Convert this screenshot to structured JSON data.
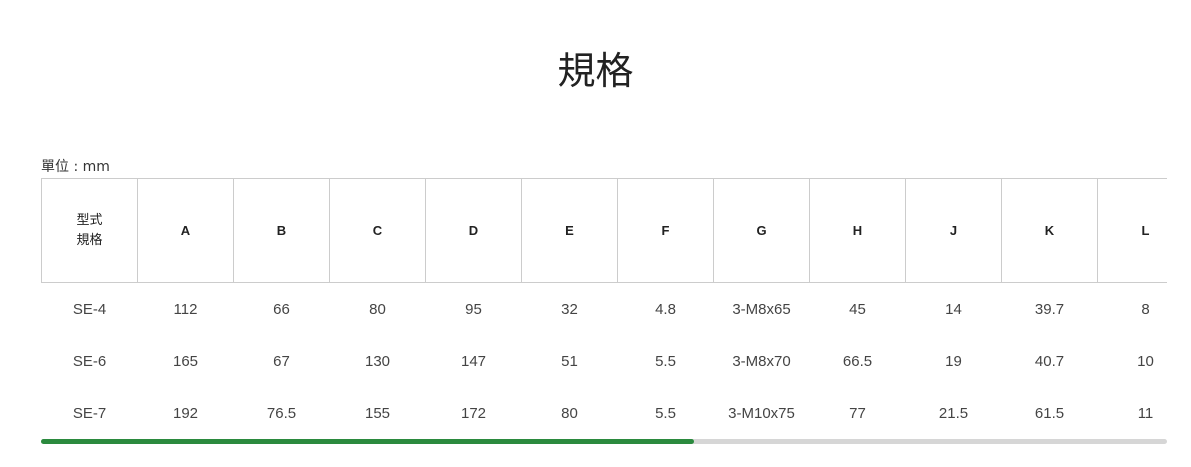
{
  "title": "規格",
  "unit_label": "單位 : mm",
  "table": {
    "headers": [
      "型式\n規格",
      "A",
      "B",
      "C",
      "D",
      "E",
      "F",
      "G",
      "H",
      "J",
      "K",
      "L",
      ""
    ],
    "rows": [
      [
        "SE-4",
        "112",
        "66",
        "80",
        "95",
        "32",
        "4.8",
        "3-M8x65",
        "45",
        "14",
        "39.7",
        "8"
      ],
      [
        "SE-6",
        "165",
        "67",
        "130",
        "147",
        "51",
        "5.5",
        "3-M8x70",
        "66.5",
        "19",
        "40.7",
        "10"
      ],
      [
        "SE-7",
        "192",
        "76.5",
        "155",
        "172",
        "80",
        "5.5",
        "3-M10x75",
        "77",
        "21.5",
        "61.5",
        "11"
      ]
    ]
  },
  "scrollbar": {
    "position_fraction": 0.58,
    "thumb_color": "#2b8a3e",
    "track_color": "#d6d6d6"
  }
}
